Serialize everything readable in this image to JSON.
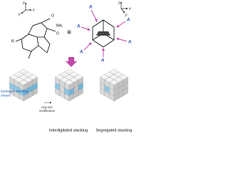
{
  "axes_left": [
    "z",
    "y",
    "x"
  ],
  "molecule_atoms": [
    "O",
    "NH₂",
    "O",
    "R"
  ],
  "equivalence": "≡",
  "axes_right": [
    "z",
    "x",
    "y"
  ],
  "acceptor_labels": [
    "A",
    "A",
    "A",
    "A",
    "A",
    "A"
  ],
  "callout": [
    "hydrogen-bonding",
    "sheets"
  ],
  "arrow_label": [
    "ring size",
    "modification"
  ],
  "captions": [
    "Interdigitated stacking",
    "Segregated stacking"
  ]
}
